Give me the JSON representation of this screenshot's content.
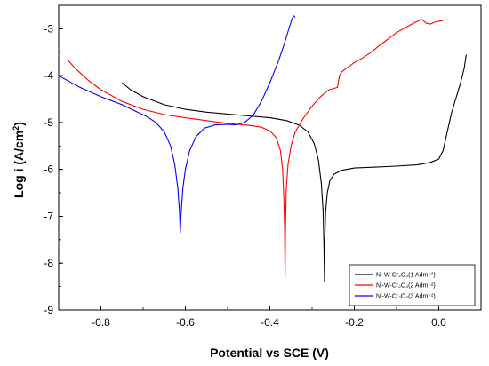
{
  "chart_data": {
    "type": "line",
    "xlabel": "Potential vs SCE (V)",
    "ylabel_main": "Log i (A/cm",
    "ylabel_sup": "2",
    "ylabel_end": ")",
    "xlim": [
      -0.9,
      0.1
    ],
    "ylim": [
      -9,
      -2.5
    ],
    "xticks": [
      -0.8,
      -0.6,
      -0.4,
      -0.2,
      0.0
    ],
    "xtick_labels": [
      "-0.8",
      "-0.6",
      "-0.4",
      "-0.2",
      "0.0"
    ],
    "yticks": [
      -9,
      -8,
      -7,
      -6,
      -5,
      -4,
      -3
    ],
    "ytick_labels": [
      "-9",
      "-8",
      "-7",
      "-6",
      "-5",
      "-4",
      "-3"
    ],
    "legend_position": "bottom-right",
    "series": [
      {
        "legend_label": "Ni-W-Cr₂O₃(1 Adm⁻²)",
        "color": "#000000",
        "points": [
          [
            -0.75,
            -4.15
          ],
          [
            -0.73,
            -4.3
          ],
          [
            -0.7,
            -4.45
          ],
          [
            -0.65,
            -4.62
          ],
          [
            -0.6,
            -4.72
          ],
          [
            -0.55,
            -4.78
          ],
          [
            -0.5,
            -4.82
          ],
          [
            -0.45,
            -4.86
          ],
          [
            -0.4,
            -4.9
          ],
          [
            -0.36,
            -4.96
          ],
          [
            -0.33,
            -5.06
          ],
          [
            -0.31,
            -5.2
          ],
          [
            -0.295,
            -5.45
          ],
          [
            -0.285,
            -5.8
          ],
          [
            -0.278,
            -6.3
          ],
          [
            -0.274,
            -6.9
          ],
          [
            -0.272,
            -7.6
          ],
          [
            -0.2705,
            -8.4
          ],
          [
            -0.27,
            -7.5
          ],
          [
            -0.268,
            -6.9
          ],
          [
            -0.264,
            -6.5
          ],
          [
            -0.258,
            -6.25
          ],
          [
            -0.248,
            -6.1
          ],
          [
            -0.23,
            -6.02
          ],
          [
            -0.2,
            -5.97
          ],
          [
            -0.15,
            -5.95
          ],
          [
            -0.1,
            -5.93
          ],
          [
            -0.05,
            -5.9
          ],
          [
            -0.02,
            -5.85
          ],
          [
            0.0,
            -5.78
          ],
          [
            0.01,
            -5.6
          ],
          [
            0.02,
            -5.2
          ],
          [
            0.03,
            -4.8
          ],
          [
            0.04,
            -4.5
          ],
          [
            0.05,
            -4.2
          ],
          [
            0.06,
            -3.85
          ],
          [
            0.065,
            -3.55
          ]
        ]
      },
      {
        "legend_label": "Ni-W-Cr₂O₃(2 Adm⁻²)",
        "color": "#ff0000",
        "points": [
          [
            -0.88,
            -3.65
          ],
          [
            -0.86,
            -3.85
          ],
          [
            -0.83,
            -4.1
          ],
          [
            -0.8,
            -4.3
          ],
          [
            -0.75,
            -4.55
          ],
          [
            -0.7,
            -4.72
          ],
          [
            -0.65,
            -4.83
          ],
          [
            -0.6,
            -4.9
          ],
          [
            -0.55,
            -4.96
          ],
          [
            -0.5,
            -5.02
          ],
          [
            -0.45,
            -5.06
          ],
          [
            -0.42,
            -5.1
          ],
          [
            -0.4,
            -5.18
          ],
          [
            -0.385,
            -5.32
          ],
          [
            -0.375,
            -5.6
          ],
          [
            -0.37,
            -6.0
          ],
          [
            -0.367,
            -6.6
          ],
          [
            -0.365,
            -7.3
          ],
          [
            -0.364,
            -8.3
          ],
          [
            -0.363,
            -7.2
          ],
          [
            -0.361,
            -6.4
          ],
          [
            -0.357,
            -5.9
          ],
          [
            -0.35,
            -5.5
          ],
          [
            -0.34,
            -5.2
          ],
          [
            -0.32,
            -4.9
          ],
          [
            -0.3,
            -4.65
          ],
          [
            -0.28,
            -4.45
          ],
          [
            -0.26,
            -4.3
          ],
          [
            -0.25,
            -4.28
          ],
          [
            -0.24,
            -4.25
          ],
          [
            -0.235,
            -4.0
          ],
          [
            -0.23,
            -3.92
          ],
          [
            -0.22,
            -3.85
          ],
          [
            -0.2,
            -3.72
          ],
          [
            -0.18,
            -3.62
          ],
          [
            -0.16,
            -3.5
          ],
          [
            -0.14,
            -3.35
          ],
          [
            -0.12,
            -3.22
          ],
          [
            -0.1,
            -3.08
          ],
          [
            -0.08,
            -2.98
          ],
          [
            -0.06,
            -2.88
          ],
          [
            -0.04,
            -2.8
          ],
          [
            -0.03,
            -2.88
          ],
          [
            -0.02,
            -2.9
          ],
          [
            -0.01,
            -2.86
          ],
          [
            0.0,
            -2.84
          ],
          [
            0.01,
            -2.82
          ]
        ]
      },
      {
        "legend_label": "Ni-W-Cr₂O₃(3 Adm⁻²)",
        "color": "#0000ff",
        "points": [
          [
            -0.9,
            -4.0
          ],
          [
            -0.85,
            -4.25
          ],
          [
            -0.8,
            -4.45
          ],
          [
            -0.75,
            -4.62
          ],
          [
            -0.72,
            -4.75
          ],
          [
            -0.69,
            -4.88
          ],
          [
            -0.67,
            -5.0
          ],
          [
            -0.65,
            -5.2
          ],
          [
            -0.635,
            -5.5
          ],
          [
            -0.625,
            -5.9
          ],
          [
            -0.618,
            -6.4
          ],
          [
            -0.614,
            -6.9
          ],
          [
            -0.612,
            -7.35
          ],
          [
            -0.61,
            -6.9
          ],
          [
            -0.606,
            -6.4
          ],
          [
            -0.6,
            -6.0
          ],
          [
            -0.59,
            -5.6
          ],
          [
            -0.575,
            -5.3
          ],
          [
            -0.555,
            -5.12
          ],
          [
            -0.53,
            -5.05
          ],
          [
            -0.5,
            -5.04
          ],
          [
            -0.48,
            -5.05
          ],
          [
            -0.46,
            -5.0
          ],
          [
            -0.44,
            -4.85
          ],
          [
            -0.42,
            -4.55
          ],
          [
            -0.4,
            -4.15
          ],
          [
            -0.38,
            -3.7
          ],
          [
            -0.365,
            -3.3
          ],
          [
            -0.355,
            -3.0
          ],
          [
            -0.348,
            -2.8
          ],
          [
            -0.344,
            -2.72
          ],
          [
            -0.342,
            -2.74
          ],
          [
            -0.34,
            -2.76
          ]
        ]
      }
    ]
  }
}
